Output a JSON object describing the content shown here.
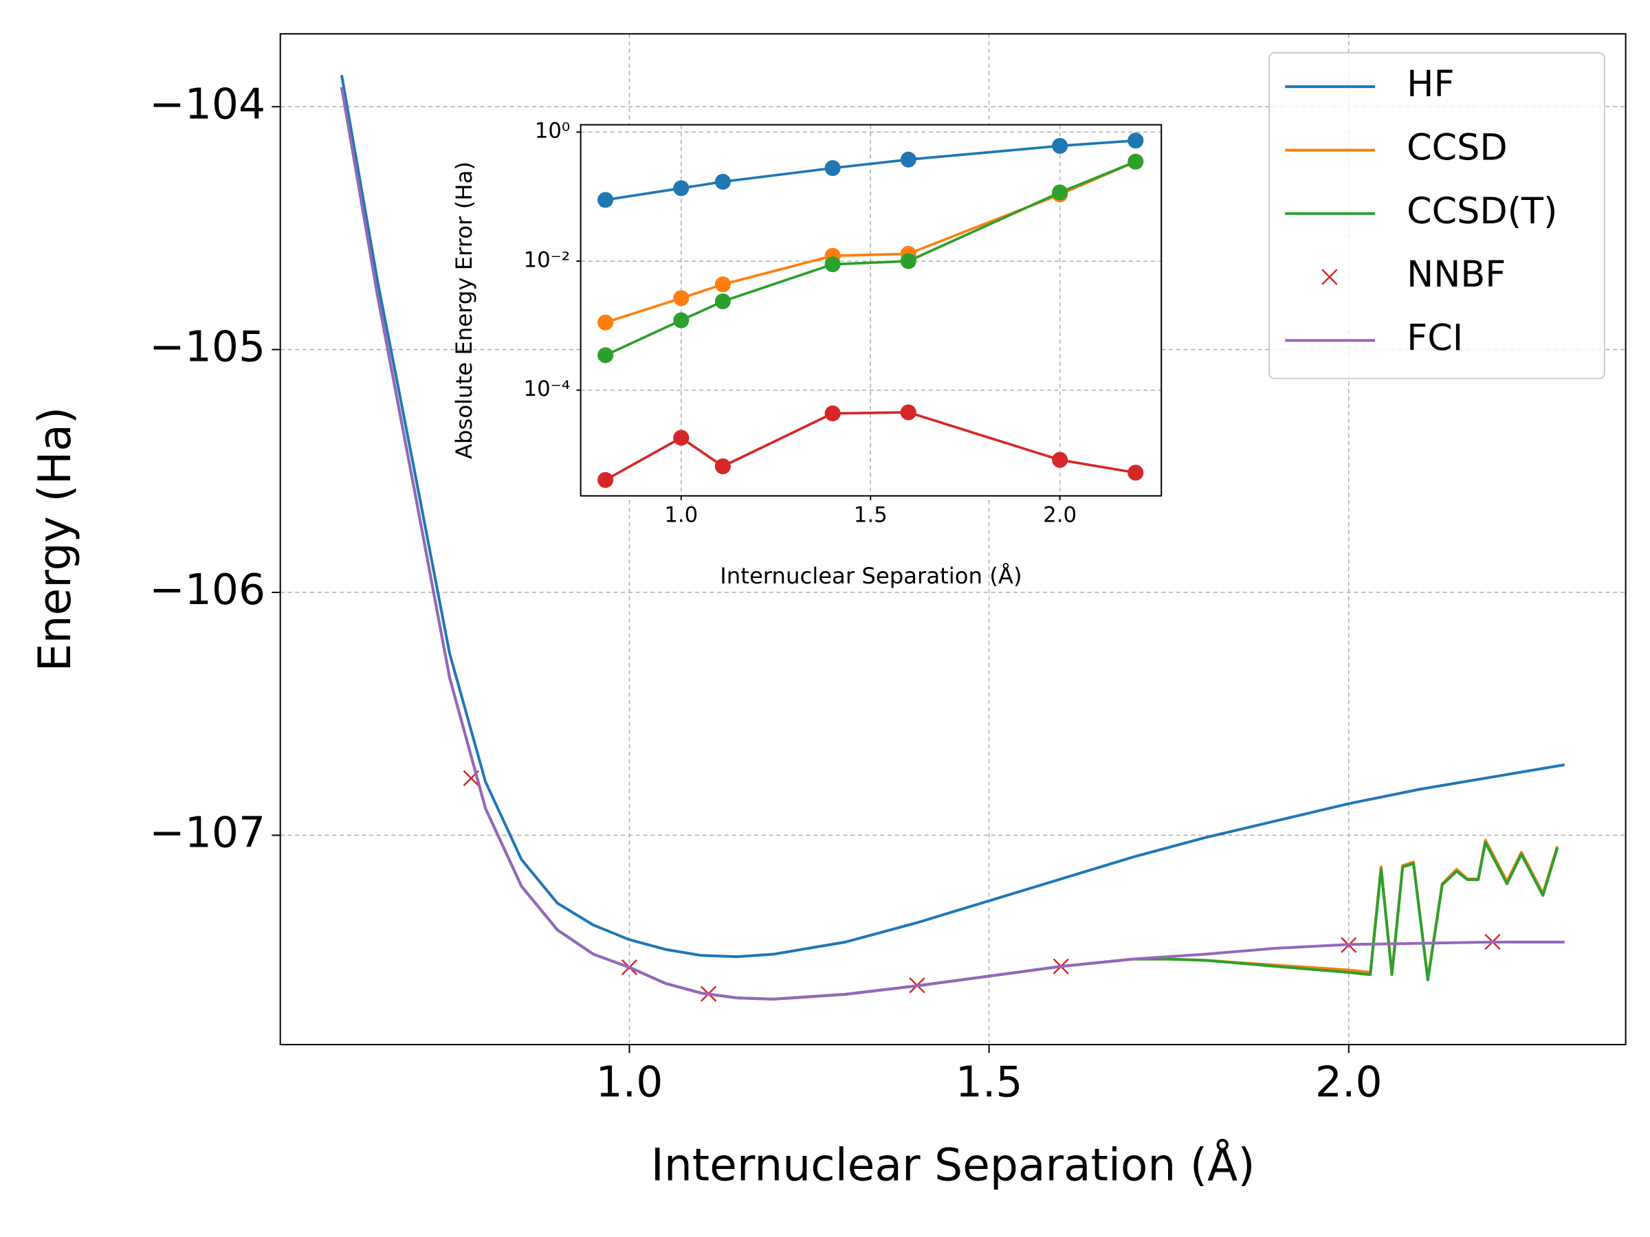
{
  "chart_data": [
    {
      "type": "line",
      "xlabel": "Internuclear Separation (Å)",
      "ylabel": "Energy (Ha)",
      "xlim": [
        0.5147,
        2.385
      ],
      "ylim": [
        -107.862,
        -103.7
      ],
      "xticks": [
        {
          "value": 1.0,
          "label": "1.0"
        },
        {
          "value": 1.5,
          "label": "1.5"
        },
        {
          "value": 2.0,
          "label": "2.0"
        }
      ],
      "yticks": [
        {
          "value": -104,
          "label": "−104"
        },
        {
          "value": -105,
          "label": "−105"
        },
        {
          "value": -106,
          "label": "−106"
        },
        {
          "value": -107,
          "label": "−107"
        }
      ],
      "grid": true,
      "legend": "upper right",
      "series": [
        {
          "name": "HF",
          "color": "#1f77b4",
          "marker": "none",
          "x": [
            0.6,
            0.65,
            0.7,
            0.75,
            0.8,
            0.85,
            0.9,
            0.95,
            1.0,
            1.05,
            1.1,
            1.15,
            1.2,
            1.3,
            1.4,
            1.5,
            1.6,
            1.7,
            1.8,
            1.9,
            2.0,
            2.1,
            2.2,
            2.3
          ],
          "values": [
            -103.87,
            -104.72,
            -105.48,
            -106.25,
            -106.78,
            -107.1,
            -107.28,
            -107.37,
            -107.43,
            -107.47,
            -107.495,
            -107.5,
            -107.49,
            -107.44,
            -107.36,
            -107.27,
            -107.18,
            -107.09,
            -107.01,
            -106.94,
            -106.87,
            -106.81,
            -106.76,
            -106.71
          ]
        },
        {
          "name": "CCSD",
          "color": "#ff7f0e",
          "marker": "none",
          "x": [
            0.6,
            0.65,
            0.7,
            0.75,
            0.8,
            0.85,
            0.9,
            0.95,
            1.0,
            1.05,
            1.1,
            1.15,
            1.2,
            1.3,
            1.4,
            1.5,
            1.6,
            1.7,
            1.75,
            1.8,
            1.9,
            2.0,
            2.03,
            2.045,
            2.06,
            2.075,
            2.09,
            2.11,
            2.13,
            2.15,
            2.165,
            2.18,
            2.19,
            2.22,
            2.24,
            2.27,
            2.29
          ],
          "values": [
            -103.92,
            -104.78,
            -105.56,
            -106.35,
            -106.89,
            -107.21,
            -107.39,
            -107.49,
            -107.544,
            -107.61,
            -107.65,
            -107.67,
            -107.675,
            -107.655,
            -107.62,
            -107.58,
            -107.54,
            -107.51,
            -107.51,
            -107.515,
            -107.535,
            -107.555,
            -107.565,
            -107.13,
            -107.57,
            -107.125,
            -107.11,
            -107.59,
            -107.2,
            -107.14,
            -107.18,
            -107.18,
            -107.02,
            -107.19,
            -107.07,
            -107.24,
            -107.045
          ]
        },
        {
          "name": "CCSD(T)",
          "color": "#2ca02c",
          "marker": "none",
          "x": [
            0.6,
            0.65,
            0.7,
            0.75,
            0.8,
            0.85,
            0.9,
            0.95,
            1.0,
            1.05,
            1.1,
            1.15,
            1.2,
            1.3,
            1.4,
            1.5,
            1.6,
            1.7,
            1.75,
            1.8,
            1.9,
            2.0,
            2.03,
            2.045,
            2.06,
            2.075,
            2.09,
            2.11,
            2.13,
            2.15,
            2.165,
            2.18,
            2.19,
            2.22,
            2.24,
            2.27,
            2.29
          ],
          "values": [
            -103.92,
            -104.78,
            -105.56,
            -106.35,
            -106.89,
            -107.21,
            -107.39,
            -107.49,
            -107.544,
            -107.61,
            -107.65,
            -107.67,
            -107.675,
            -107.655,
            -107.62,
            -107.58,
            -107.54,
            -107.51,
            -107.51,
            -107.515,
            -107.54,
            -107.565,
            -107.574,
            -107.139,
            -107.574,
            -107.13,
            -107.117,
            -107.596,
            -107.204,
            -107.148,
            -107.183,
            -107.183,
            -107.03,
            -107.2,
            -107.078,
            -107.248,
            -107.052
          ]
        },
        {
          "name": "NNBF",
          "color": "#d62728",
          "marker": "x",
          "x": [
            0.78,
            1.0,
            1.11,
            1.4,
            1.6,
            2.0,
            2.2
          ],
          "values": [
            -106.765,
            -107.544,
            -107.653,
            -107.618,
            -107.54,
            -107.452,
            -107.439
          ]
        },
        {
          "name": "FCI",
          "color": "#9467bd",
          "marker": "none",
          "x": [
            0.6,
            0.65,
            0.7,
            0.75,
            0.8,
            0.85,
            0.9,
            0.95,
            1.0,
            1.05,
            1.1,
            1.15,
            1.2,
            1.3,
            1.4,
            1.5,
            1.6,
            1.7,
            1.8,
            1.9,
            2.0,
            2.1,
            2.2,
            2.3
          ],
          "values": [
            -103.92,
            -104.78,
            -105.56,
            -106.35,
            -106.89,
            -107.21,
            -107.39,
            -107.49,
            -107.544,
            -107.61,
            -107.65,
            -107.67,
            -107.675,
            -107.655,
            -107.62,
            -107.58,
            -107.54,
            -107.51,
            -107.49,
            -107.465,
            -107.45,
            -107.445,
            -107.44,
            -107.44
          ]
        }
      ]
    },
    {
      "type": "line",
      "xlabel": "Internuclear Separation (Å)",
      "ylabel": "Absolute Energy Error (Ha)",
      "yscale": "log",
      "xlim": [
        0.7346,
        2.268
      ],
      "ylim": [
        2.3e-06,
        1.3
      ],
      "xticks": [
        {
          "value": 1.0,
          "label": "1.0"
        },
        {
          "value": 1.5,
          "label": "1.5"
        },
        {
          "value": 2.0,
          "label": "2.0"
        }
      ],
      "yticks": [
        {
          "value": 1,
          "label": "10⁰"
        },
        {
          "value": 0.01,
          "label": "10⁻²"
        },
        {
          "value": 0.0001,
          "label": "10⁻⁴"
        }
      ],
      "grid": true,
      "series": [
        {
          "color": "#1f77b4",
          "marker": "o",
          "x": [
            0.8,
            1.0,
            1.11,
            1.4,
            1.6,
            2.0,
            2.2
          ],
          "values": [
            0.089,
            0.135,
            0.17,
            0.277,
            0.375,
            0.612,
            0.739
          ]
        },
        {
          "color": "#ff7f0e",
          "marker": "o",
          "x": [
            0.8,
            1.0,
            1.11,
            1.4,
            1.6,
            2.0,
            2.2
          ],
          "values": [
            0.00112,
            0.00267,
            0.00436,
            0.0121,
            0.013,
            0.108,
            0.348
          ]
        },
        {
          "color": "#2ca02c",
          "marker": "o",
          "x": [
            0.8,
            1.0,
            1.11,
            1.4,
            1.6,
            2.0,
            2.2
          ],
          "values": [
            0.000348,
            0.00121,
            0.00238,
            0.00893,
            0.01,
            0.116,
            0.348
          ]
        },
        {
          "color": "#d62728",
          "marker": "o",
          "x": [
            0.8,
            1.0,
            1.11,
            1.4,
            1.6,
            2.0,
            2.2
          ],
          "values": [
            4.05e-06,
            1.83e-05,
            6.6e-06,
            4.36e-05,
            4.53e-05,
            8.3e-06,
            5.26e-06
          ]
        }
      ]
    }
  ]
}
